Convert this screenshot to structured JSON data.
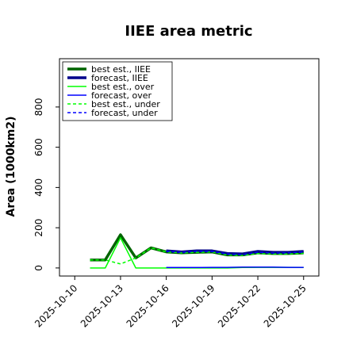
{
  "chart_data": {
    "type": "line",
    "title": "IIEE area metric",
    "ylabel": "Area (1000km2)",
    "xlabel": "",
    "ylim": [
      -40,
      1040
    ],
    "xlim": [
      "2025-10-09",
      "2025-10-26"
    ],
    "y_ticks": [
      0,
      200,
      400,
      600,
      800
    ],
    "x_ticks": [
      "2025-10-10",
      "2025-10-13",
      "2025-10-16",
      "2025-10-19",
      "2025-10-22",
      "2025-10-25"
    ],
    "highlighted_x_tick": "2025-10-16",
    "highlight_color": "#228B22",
    "legend_position": "upper left",
    "grid": false,
    "series": [
      {
        "name": "best est., IIEE",
        "color": "#006400",
        "style": "solid",
        "width": "thick",
        "x": [
          "2025-10-11",
          "2025-10-12",
          "2025-10-13",
          "2025-10-14",
          "2025-10-15",
          "2025-10-16",
          "2025-10-17",
          "2025-10-18",
          "2025-10-19",
          "2025-10-20",
          "2025-10-21",
          "2025-10-22",
          "2025-10-23",
          "2025-10-24",
          "2025-10-25"
        ],
        "y": [
          40,
          40,
          165,
          50,
          100,
          80,
          75,
          78,
          80,
          65,
          65,
          75,
          72,
          72,
          75
        ]
      },
      {
        "name": "forecast, IIEE",
        "color": "#00008B",
        "style": "solid",
        "width": "thick",
        "x": [
          "2025-10-16",
          "2025-10-17",
          "2025-10-18",
          "2025-10-19",
          "2025-10-20",
          "2025-10-21",
          "2025-10-22",
          "2025-10-23",
          "2025-10-24",
          "2025-10-25"
        ],
        "y": [
          85,
          80,
          85,
          85,
          72,
          70,
          82,
          78,
          78,
          82
        ]
      },
      {
        "name": "best est., over",
        "color": "#00FF00",
        "style": "solid",
        "width": "thin",
        "x": [
          "2025-10-11",
          "2025-10-12",
          "2025-10-13",
          "2025-10-14",
          "2025-10-15",
          "2025-10-16",
          "2025-10-17",
          "2025-10-18",
          "2025-10-19",
          "2025-10-20",
          "2025-10-21",
          "2025-10-22",
          "2025-10-23",
          "2025-10-24",
          "2025-10-25"
        ],
        "y": [
          0,
          0,
          150,
          0,
          0,
          0,
          0,
          0,
          0,
          0,
          2,
          3,
          3,
          3,
          2
        ]
      },
      {
        "name": "forecast, over",
        "color": "#0000FF",
        "style": "solid",
        "width": "thin",
        "x": [
          "2025-10-16",
          "2025-10-17",
          "2025-10-18",
          "2025-10-19",
          "2025-10-20",
          "2025-10-21",
          "2025-10-22",
          "2025-10-23",
          "2025-10-24",
          "2025-10-25"
        ],
        "y": [
          2,
          2,
          2,
          3,
          3,
          4,
          4,
          4,
          3,
          3
        ]
      },
      {
        "name": "best est., under",
        "color": "#00FF00",
        "style": "dashed",
        "width": "thin",
        "x": [
          "2025-10-11",
          "2025-10-12",
          "2025-10-13",
          "2025-10-14",
          "2025-10-15",
          "2025-10-16",
          "2025-10-17",
          "2025-10-18",
          "2025-10-19",
          "2025-10-20",
          "2025-10-21",
          "2025-10-22",
          "2025-10-23",
          "2025-10-24",
          "2025-10-25"
        ],
        "y": [
          40,
          40,
          20,
          50,
          100,
          80,
          75,
          78,
          80,
          65,
          63,
          72,
          70,
          70,
          73
        ]
      },
      {
        "name": "forecast, under",
        "color": "#0000FF",
        "style": "dashed",
        "width": "thin",
        "x": [
          "2025-10-16",
          "2025-10-17",
          "2025-10-18",
          "2025-10-19",
          "2025-10-20",
          "2025-10-21",
          "2025-10-22",
          "2025-10-23",
          "2025-10-24",
          "2025-10-25"
        ],
        "y": [
          83,
          78,
          83,
          82,
          69,
          66,
          78,
          74,
          75,
          79
        ]
      }
    ]
  }
}
